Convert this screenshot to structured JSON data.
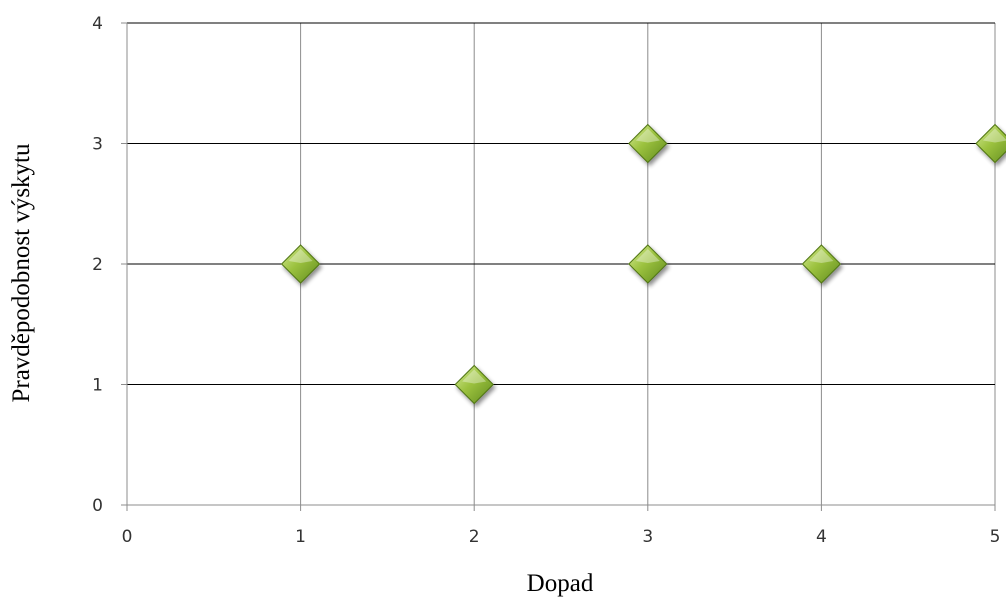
{
  "chart_data": {
    "type": "scatter",
    "title": "",
    "xlabel": "Dopad",
    "ylabel": "Pravděpodobnost výskytu",
    "xlim": [
      0,
      5
    ],
    "ylim": [
      0,
      4
    ],
    "x_ticks": [
      "0",
      "1",
      "2",
      "3",
      "4",
      "5"
    ],
    "y_ticks": [
      "0",
      "1",
      "2",
      "3",
      "4"
    ],
    "grid": true,
    "legend": "none",
    "marker": "diamond",
    "marker_color": "#8fb53a",
    "series": [
      {
        "points": [
          {
            "x": 1,
            "y": 2
          },
          {
            "x": 2,
            "y": 1
          },
          {
            "x": 3,
            "y": 3
          },
          {
            "x": 3,
            "y": 2
          },
          {
            "x": 4,
            "y": 2
          },
          {
            "x": 5,
            "y": 3
          }
        ]
      }
    ]
  }
}
